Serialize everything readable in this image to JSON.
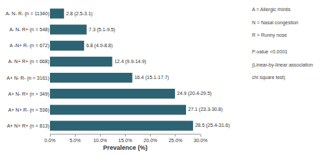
{
  "chart_data": {
    "type": "bar",
    "orientation": "horizontal",
    "categories": [
      "A- N- R- (n = 11340)",
      "A- N- R+ (n = 548)",
      "A -N+ R- (n = 672)",
      "A- N+ R+ (n = 668)",
      "A+ N- R- (n = 3161)",
      "A+ N- R+ (n = 349)",
      "A+ N+ R- (n = 536)",
      "A+ N+ R+ (n = 813)"
    ],
    "values": [
      2.8,
      7.3,
      6.8,
      12.4,
      16.4,
      24.9,
      27.1,
      28.5
    ],
    "value_labels": [
      "2.8 (2.5-3.1)",
      "7.3 (5.1-9.5)",
      "6.8 (4.9-8.8)",
      "12.4 (9.9-14.9)",
      "16.4 (15.1-17.7)",
      "24.9 (20.4-29.5)",
      "27.1 (23.3-30.8)",
      "28.5 (25.4-31.6)"
    ],
    "data_labels": true,
    "color": "#2d6474",
    "xlabel": "Prevalence (%)",
    "xlim": [
      0,
      30
    ],
    "xticks": [
      {
        "value": 0,
        "label": "0.0%"
      },
      {
        "value": 5,
        "label": "5.0%"
      },
      {
        "value": 10,
        "label": "10.0%"
      },
      {
        "value": 15,
        "label": "15.0%"
      },
      {
        "value": 20,
        "label": "20.0%"
      },
      {
        "value": 25,
        "label": "25.0%"
      },
      {
        "value": 30,
        "label": "30.0%"
      }
    ],
    "grid": false,
    "annotations": [
      "A = Allergic rhintis",
      "N = Nasal congestion",
      "R = Runny nose",
      "P-value <0.0001",
      "(Linear-by-linear association",
      "chi square test)"
    ]
  }
}
